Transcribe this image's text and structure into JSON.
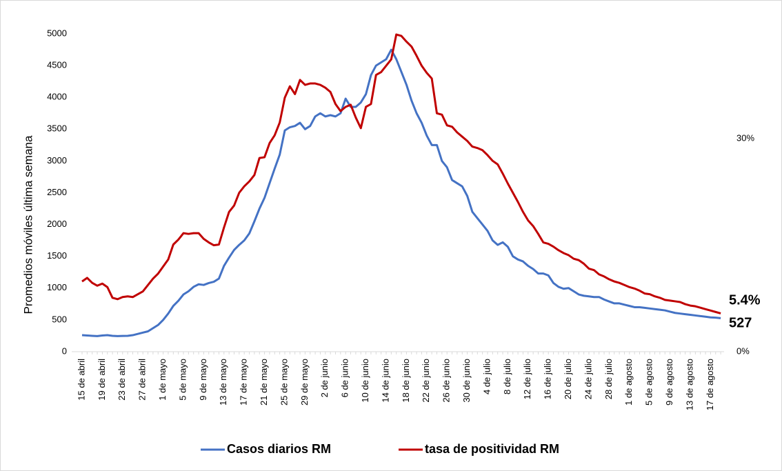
{
  "chart_data": {
    "type": "line",
    "y_label": "Promedios móviles última semana",
    "categories": [
      "15 de abril",
      null,
      null,
      null,
      "19 de abril",
      null,
      null,
      null,
      "23 de abril",
      null,
      null,
      null,
      "27 de abril",
      null,
      null,
      null,
      "1 de mayo",
      null,
      null,
      null,
      "5 de mayo",
      null,
      null,
      null,
      "9 de mayo",
      null,
      null,
      null,
      "13 de mayo",
      null,
      null,
      null,
      "17 de mayo",
      null,
      null,
      null,
      "21 de mayo",
      null,
      null,
      null,
      "25 de mayo",
      null,
      null,
      null,
      "29 de mayo",
      null,
      null,
      null,
      "2 de junio",
      null,
      null,
      null,
      "6 de junio",
      null,
      null,
      null,
      "10 de junio",
      null,
      null,
      null,
      "14 de junio",
      null,
      null,
      null,
      "18 de junio",
      null,
      null,
      null,
      "22 de junio",
      null,
      null,
      null,
      "26 de junio",
      null,
      null,
      null,
      "30 de junio",
      null,
      null,
      null,
      "4 de julio",
      null,
      null,
      null,
      "8 de julio",
      null,
      null,
      null,
      "12 de julio",
      null,
      null,
      null,
      "16 de julio",
      null,
      null,
      null,
      "20 de julio",
      null,
      null,
      null,
      "24 de julio",
      null,
      null,
      null,
      "28 de julio",
      null,
      null,
      null,
      "1 de agosto",
      null,
      null,
      null,
      "5 de agosto",
      null,
      null,
      null,
      "9 de agosto",
      null,
      null,
      null,
      "13 de agosto",
      null,
      null,
      null,
      "17 de agosto",
      null,
      null
    ],
    "series": [
      {
        "name": "Casos diarios RM",
        "color": "#4472c4",
        "end_label": "527",
        "values": [
          260,
          255,
          250,
          245,
          255,
          260,
          250,
          245,
          248,
          250,
          260,
          280,
          300,
          320,
          370,
          420,
          500,
          600,
          720,
          800,
          900,
          950,
          1020,
          1060,
          1050,
          1080,
          1100,
          1150,
          1350,
          1480,
          1600,
          1680,
          1750,
          1860,
          2050,
          2250,
          2420,
          2650,
          2880,
          3100,
          3480,
          3530,
          3550,
          3600,
          3500,
          3550,
          3700,
          3750,
          3700,
          3720,
          3700,
          3750,
          3980,
          3850,
          3850,
          3920,
          4050,
          4350,
          4500,
          4550,
          4600,
          4750,
          4600,
          4400,
          4200,
          3950,
          3750,
          3600,
          3400,
          3250,
          3250,
          3000,
          2900,
          2700,
          2650,
          2600,
          2450,
          2200,
          2100,
          2000,
          1900,
          1750,
          1680,
          1720,
          1650,
          1500,
          1450,
          1420,
          1350,
          1300,
          1230,
          1230,
          1200,
          1080,
          1020,
          990,
          1000,
          950,
          900,
          880,
          870,
          860,
          860,
          820,
          790,
          760,
          760,
          740,
          720,
          700,
          700,
          690,
          680,
          670,
          660,
          650,
          630,
          610,
          600,
          590,
          580,
          570,
          560,
          550,
          540,
          535,
          527
        ]
      },
      {
        "name": "tasa de positividad RM",
        "color": "#c00000",
        "axis": "y2",
        "end_label": "5.4%",
        "values": [
          9.9,
          10.4,
          9.7,
          9.3,
          9.6,
          9.1,
          7.6,
          7.4,
          7.7,
          7.8,
          7.7,
          8.1,
          8.5,
          9.4,
          10.3,
          11.0,
          12.0,
          13.0,
          15.1,
          15.8,
          16.7,
          16.6,
          16.7,
          16.7,
          15.9,
          15.4,
          15.0,
          15.1,
          17.5,
          19.7,
          20.6,
          22.4,
          23.3,
          24.0,
          24.9,
          27.3,
          27.4,
          29.4,
          30.5,
          32.3,
          35.8,
          37.4,
          36.3,
          38.3,
          37.6,
          37.8,
          37.8,
          37.6,
          37.2,
          36.6,
          34.9,
          33.9,
          34.5,
          34.8,
          33.0,
          31.5,
          34.5,
          34.9,
          39.0,
          39.4,
          40.3,
          41.2,
          44.7,
          44.5,
          43.7,
          43.0,
          41.7,
          40.3,
          39.3,
          38.5,
          33.6,
          33.4,
          31.9,
          31.7,
          30.9,
          30.3,
          29.7,
          28.9,
          28.7,
          28.4,
          27.7,
          26.9,
          26.4,
          25.1,
          23.7,
          22.4,
          21.1,
          19.7,
          18.5,
          17.7,
          16.6,
          15.4,
          15.2,
          14.8,
          14.3,
          13.9,
          13.6,
          13.1,
          12.9,
          12.4,
          11.7,
          11.5,
          10.9,
          10.6,
          10.2,
          9.9,
          9.7,
          9.4,
          9.1,
          8.9,
          8.6,
          8.2,
          8.1,
          7.8,
          7.6,
          7.3,
          7.2,
          7.1,
          7.0,
          6.7,
          6.5,
          6.4,
          6.2,
          6.0,
          5.8,
          5.6,
          5.4
        ]
      }
    ],
    "ylim": [
      0,
      5000
    ],
    "yticks": [
      0,
      500,
      1000,
      1500,
      2000,
      2500,
      3000,
      3500,
      4000,
      4500,
      5000
    ],
    "y2lim": [
      0,
      44.8
    ],
    "y2ticks": [
      {
        "value": 0,
        "label": "0%"
      },
      {
        "value": 30,
        "label": "30%"
      }
    ],
    "grid": false,
    "legend": "bottom"
  }
}
